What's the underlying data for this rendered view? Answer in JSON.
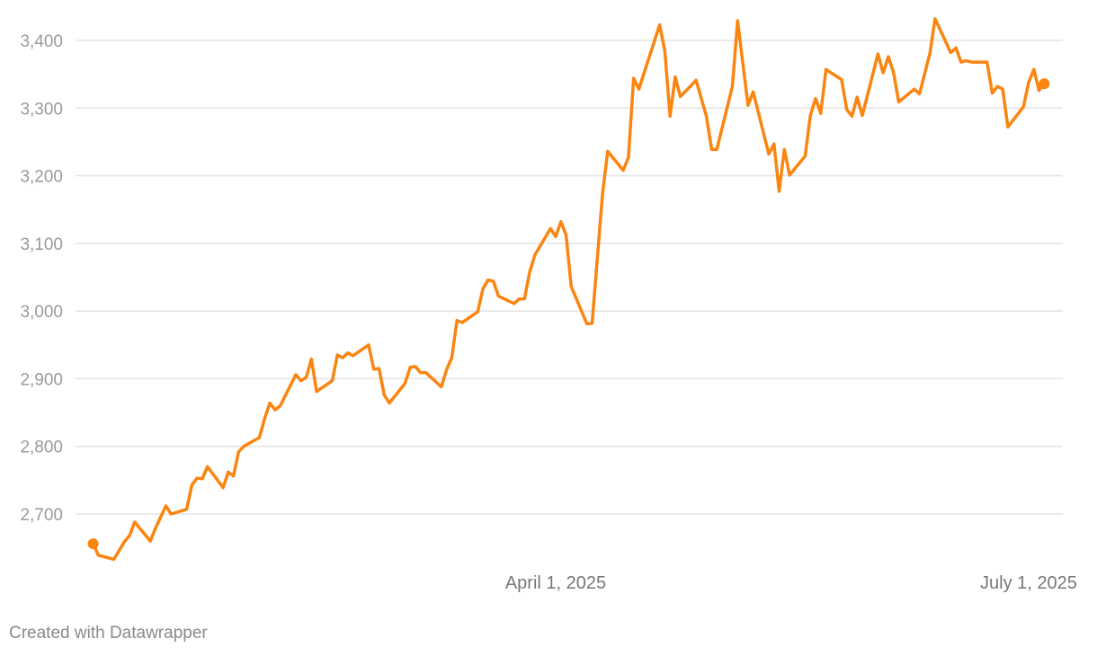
{
  "chart_data": {
    "type": "line",
    "title": "",
    "xlabel": "",
    "ylabel": "",
    "ylim": [
      2610,
      3440
    ],
    "y_ticks": [
      2700,
      2800,
      2900,
      3000,
      3100,
      3200,
      3300,
      3400
    ],
    "y_tick_labels": [
      "2,700",
      "2,800",
      "2,900",
      "3,000",
      "3,100",
      "3,200",
      "3,300",
      "3,400"
    ],
    "x_ticks": [
      "2025-04-01",
      "2025-07-01"
    ],
    "x_tick_labels": [
      "April 1, 2025",
      "July 1, 2025"
    ],
    "grid": "horizontal",
    "line_color": "#fa8511",
    "endpoint_markers": true,
    "series": [
      {
        "points": [
          [
            "2025-01-02",
            2656
          ],
          [
            "2025-01-03",
            2639
          ],
          [
            "2025-01-06",
            2633
          ],
          [
            "2025-01-08",
            2659
          ],
          [
            "2025-01-09",
            2668
          ],
          [
            "2025-01-10",
            2688
          ],
          [
            "2025-01-13",
            2660
          ],
          [
            "2025-01-14",
            2679
          ],
          [
            "2025-01-16",
            2712
          ],
          [
            "2025-01-17",
            2700
          ],
          [
            "2025-01-20",
            2707
          ],
          [
            "2025-01-21",
            2743
          ],
          [
            "2025-01-22",
            2753
          ],
          [
            "2025-01-23",
            2752
          ],
          [
            "2025-01-24",
            2770
          ],
          [
            "2025-01-27",
            2739
          ],
          [
            "2025-01-28",
            2762
          ],
          [
            "2025-01-29",
            2756
          ],
          [
            "2025-01-30",
            2792
          ],
          [
            "2025-01-31",
            2800
          ],
          [
            "2025-02-03",
            2813
          ],
          [
            "2025-02-04",
            2841
          ],
          [
            "2025-02-05",
            2864
          ],
          [
            "2025-02-06",
            2854
          ],
          [
            "2025-02-07",
            2860
          ],
          [
            "2025-02-10",
            2906
          ],
          [
            "2025-02-11",
            2897
          ],
          [
            "2025-02-12",
            2902
          ],
          [
            "2025-02-13",
            2929
          ],
          [
            "2025-02-14",
            2881
          ],
          [
            "2025-02-17",
            2897
          ],
          [
            "2025-02-18",
            2935
          ],
          [
            "2025-02-19",
            2931
          ],
          [
            "2025-02-20",
            2938
          ],
          [
            "2025-02-21",
            2934
          ],
          [
            "2025-02-24",
            2950
          ],
          [
            "2025-02-25",
            2914
          ],
          [
            "2025-02-26",
            2915
          ],
          [
            "2025-02-27",
            2876
          ],
          [
            "2025-02-28",
            2864
          ],
          [
            "2025-03-03",
            2893
          ],
          [
            "2025-03-04",
            2917
          ],
          [
            "2025-03-05",
            2918
          ],
          [
            "2025-03-06",
            2909
          ],
          [
            "2025-03-07",
            2909
          ],
          [
            "2025-03-10",
            2888
          ],
          [
            "2025-03-11",
            2913
          ],
          [
            "2025-03-12",
            2931
          ],
          [
            "2025-03-13",
            2986
          ],
          [
            "2025-03-14",
            2983
          ],
          [
            "2025-03-17",
            2999
          ],
          [
            "2025-03-18",
            3033
          ],
          [
            "2025-03-19",
            3046
          ],
          [
            "2025-03-20",
            3044
          ],
          [
            "2025-03-21",
            3022
          ],
          [
            "2025-03-24",
            3011
          ],
          [
            "2025-03-25",
            3018
          ],
          [
            "2025-03-26",
            3018
          ],
          [
            "2025-03-27",
            3058
          ],
          [
            "2025-03-28",
            3083
          ],
          [
            "2025-03-31",
            3122
          ],
          [
            "2025-04-01",
            3110
          ],
          [
            "2025-04-02",
            3132
          ],
          [
            "2025-04-03",
            3112
          ],
          [
            "2025-04-04",
            3036
          ],
          [
            "2025-04-07",
            2981
          ],
          [
            "2025-04-08",
            2982
          ],
          [
            "2025-04-10",
            3172
          ],
          [
            "2025-04-11",
            3236
          ],
          [
            "2025-04-14",
            3208
          ],
          [
            "2025-04-15",
            3227
          ],
          [
            "2025-04-16",
            3344
          ],
          [
            "2025-04-17",
            3328
          ],
          [
            "2025-04-21",
            3423
          ],
          [
            "2025-04-22",
            3384
          ],
          [
            "2025-04-23",
            3288
          ],
          [
            "2025-04-24",
            3346
          ],
          [
            "2025-04-25",
            3317
          ],
          [
            "2025-04-28",
            3341
          ],
          [
            "2025-04-30",
            3288
          ],
          [
            "2025-05-01",
            3239
          ],
          [
            "2025-05-02",
            3239
          ],
          [
            "2025-05-05",
            3332
          ],
          [
            "2025-05-06",
            3429
          ],
          [
            "2025-05-08",
            3304
          ],
          [
            "2025-05-09",
            3324
          ],
          [
            "2025-05-12",
            3232
          ],
          [
            "2025-05-13",
            3247
          ],
          [
            "2025-05-14",
            3177
          ],
          [
            "2025-05-15",
            3239
          ],
          [
            "2025-05-16",
            3201
          ],
          [
            "2025-05-19",
            3229
          ],
          [
            "2025-05-20",
            3289
          ],
          [
            "2025-05-21",
            3314
          ],
          [
            "2025-05-22",
            3292
          ],
          [
            "2025-05-23",
            3357
          ],
          [
            "2025-05-26",
            3342
          ],
          [
            "2025-05-27",
            3298
          ],
          [
            "2025-05-28",
            3288
          ],
          [
            "2025-05-29",
            3316
          ],
          [
            "2025-05-30",
            3289
          ],
          [
            "2025-06-02",
            3380
          ],
          [
            "2025-06-03",
            3352
          ],
          [
            "2025-06-04",
            3376
          ],
          [
            "2025-06-05",
            3353
          ],
          [
            "2025-06-06",
            3309
          ],
          [
            "2025-06-09",
            3328
          ],
          [
            "2025-06-10",
            3321
          ],
          [
            "2025-06-12",
            3381
          ],
          [
            "2025-06-13",
            3432
          ],
          [
            "2025-06-16",
            3382
          ],
          [
            "2025-06-17",
            3389
          ],
          [
            "2025-06-18",
            3368
          ],
          [
            "2025-06-19",
            3370
          ],
          [
            "2025-06-20",
            3368
          ],
          [
            "2025-06-23",
            3368
          ],
          [
            "2025-06-24",
            3322
          ],
          [
            "2025-06-25",
            3332
          ],
          [
            "2025-06-26",
            3328
          ],
          [
            "2025-06-27",
            3272
          ],
          [
            "2025-06-30",
            3302
          ],
          [
            "2025-07-01",
            3338
          ],
          [
            "2025-07-02",
            3357
          ],
          [
            "2025-07-03",
            3326
          ],
          [
            "2025-07-04",
            3336
          ]
        ]
      }
    ]
  },
  "footer": {
    "credit": "Created with Datawrapper"
  }
}
